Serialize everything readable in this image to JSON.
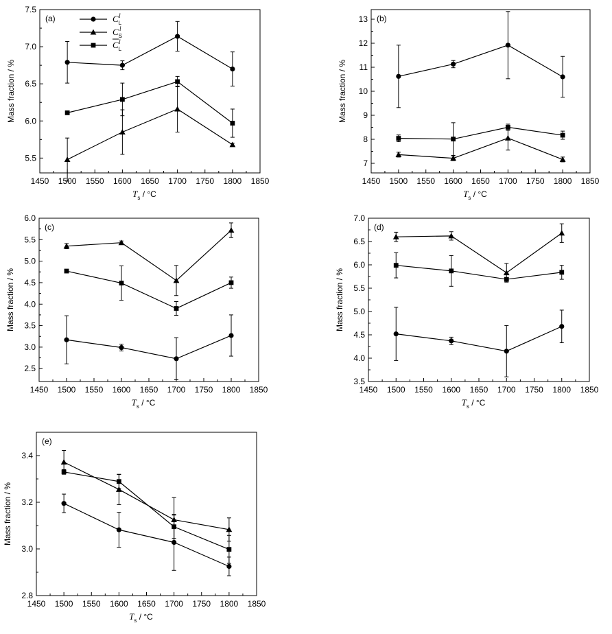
{
  "chart_data": [
    {
      "type": "line",
      "panel_label": "(a)",
      "x": [
        1500,
        1600,
        1700,
        1800
      ],
      "xlim": [
        1450,
        1850
      ],
      "xticks": [
        1450,
        1500,
        1550,
        1600,
        1650,
        1700,
        1750,
        1800,
        1850
      ],
      "ylim": [
        5.3,
        7.5
      ],
      "yticks": [
        "5.5",
        "6.0",
        "6.5",
        "7.0",
        "7.5"
      ],
      "ylabel": "Mass fraction / %",
      "xlabel": {
        "var": "T",
        "sub": "s",
        "unit": " / °C"
      },
      "legend": {
        "placement": "top-left",
        "entries": [
          {
            "marker": "circle",
            "main": "C",
            "sub": "L",
            "sup": "l",
            "bar": false
          },
          {
            "marker": "triangle",
            "main": "C",
            "sub": "S",
            "sup": "l",
            "bar": false
          },
          {
            "marker": "square",
            "main": "C",
            "sub": "L",
            "sup": "l",
            "bar": true
          }
        ]
      },
      "series": [
        {
          "marker": "circle",
          "values": [
            6.79,
            6.75,
            7.14,
            6.7
          ],
          "err": [
            0.28,
            0.06,
            0.2,
            0.23
          ]
        },
        {
          "marker": "triangle",
          "values": [
            5.48,
            5.85,
            6.16,
            5.68
          ],
          "err": [
            0.29,
            0.3,
            0.31,
            0.02
          ]
        },
        {
          "marker": "square",
          "values": [
            6.11,
            6.29,
            6.53,
            5.97
          ],
          "err": [
            0.02,
            0.22,
            0.07,
            0.19
          ]
        }
      ]
    },
    {
      "type": "line",
      "panel_label": "(b)",
      "x": [
        1500,
        1600,
        1700,
        1800
      ],
      "xlim": [
        1450,
        1850
      ],
      "xticks": [
        1450,
        1500,
        1550,
        1600,
        1650,
        1700,
        1750,
        1800,
        1850
      ],
      "ylim": [
        6.6,
        13.4
      ],
      "yticks": [
        "7",
        "8",
        "9",
        "10",
        "11",
        "12",
        "13"
      ],
      "ylabel": "Mass fraction / %",
      "xlabel": {
        "var": "T",
        "sub": "s",
        "unit": " / °C"
      },
      "series": [
        {
          "marker": "circle",
          "values": [
            10.62,
            11.13,
            11.92,
            10.6
          ],
          "err": [
            1.3,
            0.15,
            1.4,
            0.85
          ]
        },
        {
          "marker": "square",
          "values": [
            8.04,
            8.01,
            8.5,
            8.17
          ],
          "err": [
            0.14,
            0.68,
            0.13,
            0.17
          ]
        },
        {
          "marker": "triangle",
          "values": [
            7.36,
            7.21,
            8.05,
            7.16
          ],
          "err": [
            0.1,
            0.1,
            0.5,
            0.1
          ]
        }
      ]
    },
    {
      "type": "line",
      "panel_label": "(c)",
      "x": [
        1500,
        1600,
        1700,
        1800
      ],
      "xlim": [
        1450,
        1850
      ],
      "xticks": [
        1450,
        1500,
        1550,
        1600,
        1650,
        1700,
        1750,
        1800,
        1850
      ],
      "ylim": [
        2.2,
        6.0
      ],
      "yticks": [
        "2.5",
        "3.0",
        "3.5",
        "4.0",
        "4.5",
        "5.0",
        "5.5",
        "6.0"
      ],
      "ylabel": "Mass fraction / %",
      "xlabel": {
        "var": "T",
        "sub": "s",
        "unit": " / °C"
      },
      "series": [
        {
          "marker": "triangle",
          "values": [
            5.35,
            5.43,
            4.55,
            5.72
          ],
          "err": [
            0.06,
            0.04,
            0.35,
            0.17
          ]
        },
        {
          "marker": "square",
          "values": [
            4.77,
            4.49,
            3.9,
            4.5
          ],
          "err": [
            0.02,
            0.4,
            0.16,
            0.13
          ]
        },
        {
          "marker": "circle",
          "values": [
            3.17,
            2.99,
            2.73,
            3.27
          ],
          "err": [
            0.56,
            0.08,
            0.49,
            0.48
          ]
        }
      ]
    },
    {
      "type": "line",
      "panel_label": "(d)",
      "x": [
        1500,
        1600,
        1700,
        1800
      ],
      "xlim": [
        1450,
        1850
      ],
      "xticks": [
        1450,
        1500,
        1550,
        1600,
        1650,
        1700,
        1750,
        1800,
        1850
      ],
      "ylim": [
        3.5,
        7.0
      ],
      "yticks": [
        "3.5",
        "4.0",
        "4.5",
        "5.0",
        "5.5",
        "6.0",
        "6.5",
        "7.0"
      ],
      "ylabel": "Mass fraction / %",
      "xlabel": {
        "var": "T",
        "sub": "s",
        "unit": " / °C"
      },
      "series": [
        {
          "marker": "triangle",
          "values": [
            6.6,
            6.62,
            5.83,
            6.68
          ],
          "err": [
            0.1,
            0.09,
            0.2,
            0.2
          ]
        },
        {
          "marker": "square",
          "values": [
            5.99,
            5.87,
            5.69,
            5.84
          ],
          "err": [
            0.27,
            0.33,
            0.03,
            0.15
          ]
        },
        {
          "marker": "circle",
          "values": [
            4.52,
            4.37,
            4.15,
            4.68
          ],
          "err": [
            0.57,
            0.08,
            0.55,
            0.35
          ]
        }
      ]
    },
    {
      "type": "line",
      "panel_label": "(e)",
      "x": [
        1500,
        1600,
        1700,
        1800
      ],
      "xlim": [
        1450,
        1850
      ],
      "xticks": [
        1450,
        1500,
        1550,
        1600,
        1650,
        1700,
        1750,
        1800,
        1850
      ],
      "ylim": [
        2.8,
        3.5
      ],
      "yticks": [
        "2.8",
        "3.0",
        "3.2",
        "3.4"
      ],
      "ylabel": "Mass fraction / %",
      "xlabel": {
        "var": "T",
        "sub": "s",
        "unit": " / °C"
      },
      "series": [
        {
          "marker": "triangle",
          "values": [
            3.372,
            3.255,
            3.125,
            3.083
          ],
          "err": [
            0.05,
            0.065,
            0.095,
            0.05
          ]
        },
        {
          "marker": "square",
          "values": [
            3.33,
            3.289,
            3.095,
            2.998
          ],
          "err": [
            0.01,
            0.03,
            0.05,
            0.06
          ]
        },
        {
          "marker": "circle",
          "values": [
            3.195,
            3.082,
            3.028,
            2.925
          ],
          "err": [
            0.04,
            0.075,
            0.12,
            0.04
          ]
        }
      ]
    }
  ]
}
